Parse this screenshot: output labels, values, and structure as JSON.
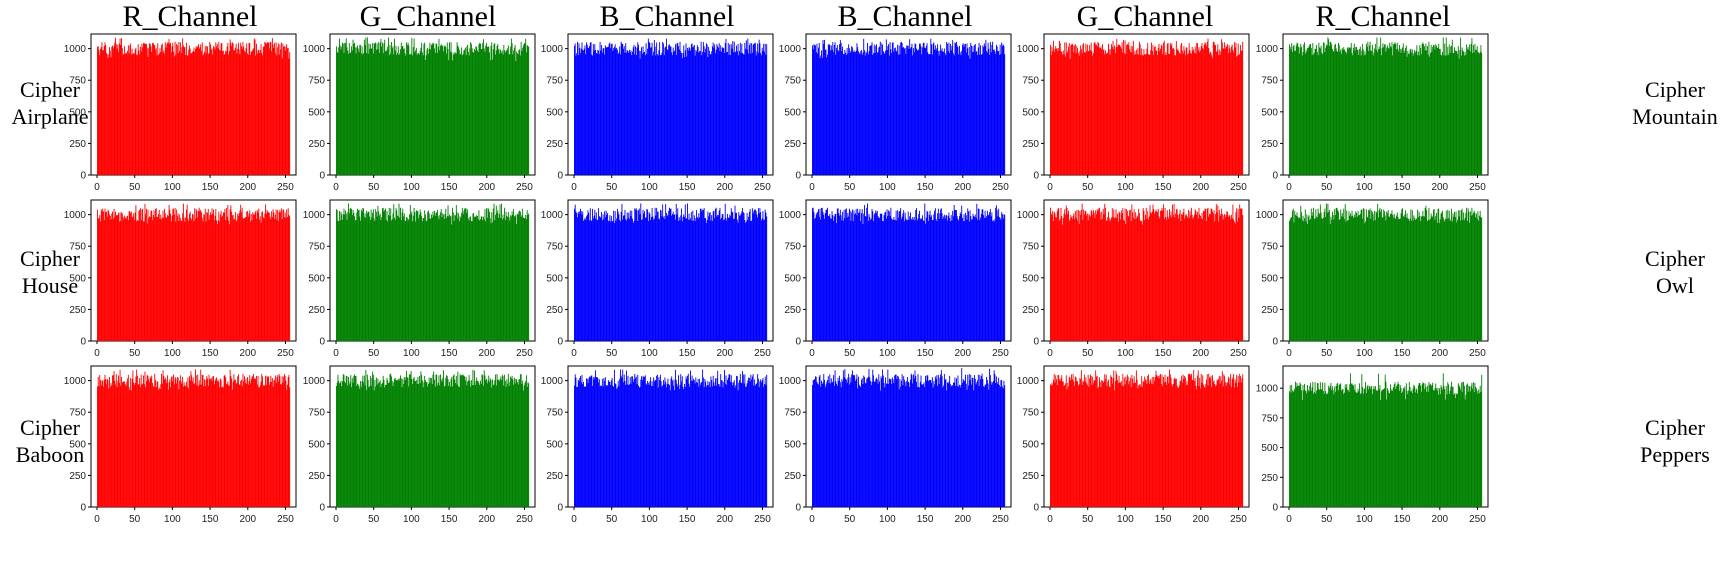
{
  "figure": {
    "column_titles": [
      "R_Channel",
      "G_Channel",
      "B_Channel",
      "B_Channel",
      "G_Channel",
      "R_Channel"
    ],
    "left_row_labels": [
      {
        "line1": "Cipher",
        "line2": "Airplane"
      },
      {
        "line1": "Cipher",
        "line2": "House"
      },
      {
        "line1": "Cipher",
        "line2": "Baboon"
      }
    ],
    "right_row_labels": [
      {
        "line1": "Cipher",
        "line2": "Mountain"
      },
      {
        "line1": "Cipher",
        "line2": "Owl"
      },
      {
        "line1": "Cipher",
        "line2": "Peppers"
      }
    ]
  },
  "colors": {
    "red": "#ff0000",
    "green": "#008000",
    "blue": "#0000ff"
  },
  "chart_data": [
    {
      "type": "bar",
      "title": "R_Channel",
      "image": "Cipher Airplane",
      "color": "#ff0000",
      "x_range": [
        0,
        255
      ],
      "value_range": [
        920,
        1090
      ],
      "typical_value": 1000,
      "ylim": [
        0,
        1100
      ],
      "xticks": [
        "0",
        "50",
        "100",
        "150",
        "200",
        "250"
      ],
      "yticks": [
        "0",
        "250",
        "500",
        "750",
        "1000"
      ],
      "grid": false
    },
    {
      "type": "bar",
      "title": "G_Channel",
      "image": "Cipher Airplane",
      "color": "#008000",
      "x_range": [
        0,
        255
      ],
      "value_range": [
        900,
        1090
      ],
      "typical_value": 1000,
      "ylim": [
        0,
        1100
      ],
      "xticks": [
        "0",
        "50",
        "100",
        "150",
        "200",
        "250"
      ],
      "yticks": [
        "0",
        "250",
        "500",
        "750",
        "1000"
      ],
      "grid": false
    },
    {
      "type": "bar",
      "title": "B_Channel",
      "image": "Cipher Airplane",
      "color": "#0000ff",
      "x_range": [
        0,
        255
      ],
      "value_range": [
        920,
        1080
      ],
      "typical_value": 1000,
      "ylim": [
        0,
        1100
      ],
      "xticks": [
        "0",
        "50",
        "100",
        "150",
        "200",
        "250"
      ],
      "yticks": [
        "0",
        "250",
        "500",
        "750",
        "1000"
      ],
      "grid": false
    },
    {
      "type": "bar",
      "title": "B_Channel",
      "image": "Cipher Mountain",
      "color": "#0000ff",
      "x_range": [
        0,
        255
      ],
      "value_range": [
        920,
        1080
      ],
      "typical_value": 1000,
      "ylim": [
        0,
        1100
      ],
      "xticks": [
        "0",
        "50",
        "100",
        "150",
        "200",
        "250"
      ],
      "yticks": [
        "0",
        "250",
        "500",
        "750",
        "1000"
      ],
      "grid": false
    },
    {
      "type": "bar",
      "title": "G_Channel",
      "image": "Cipher Mountain",
      "color": "#ff0000",
      "x_range": [
        0,
        255
      ],
      "value_range": [
        920,
        1080
      ],
      "typical_value": 1000,
      "ylim": [
        0,
        1100
      ],
      "xticks": [
        "0",
        "50",
        "100",
        "150",
        "200",
        "250"
      ],
      "yticks": [
        "0",
        "250",
        "500",
        "750",
        "1000"
      ],
      "grid": false
    },
    {
      "type": "bar",
      "title": "R_Channel",
      "image": "Cipher Mountain",
      "color": "#008000",
      "x_range": [
        0,
        255
      ],
      "value_range": [
        920,
        1090
      ],
      "typical_value": 1000,
      "ylim": [
        0,
        1100
      ],
      "xticks": [
        "0",
        "50",
        "100",
        "150",
        "200",
        "250"
      ],
      "yticks": [
        "0",
        "250",
        "500",
        "750",
        "1000"
      ],
      "grid": false
    },
    {
      "type": "bar",
      "title": "R_Channel",
      "image": "Cipher House",
      "color": "#ff0000",
      "x_range": [
        0,
        255
      ],
      "value_range": [
        920,
        1090
      ],
      "typical_value": 1000,
      "ylim": [
        0,
        1100
      ],
      "xticks": [
        "0",
        "50",
        "100",
        "150",
        "200",
        "250"
      ],
      "yticks": [
        "0",
        "250",
        "500",
        "750",
        "1000"
      ],
      "grid": false
    },
    {
      "type": "bar",
      "title": "G_Channel",
      "image": "Cipher House",
      "color": "#008000",
      "x_range": [
        0,
        255
      ],
      "value_range": [
        920,
        1090
      ],
      "typical_value": 1000,
      "ylim": [
        0,
        1100
      ],
      "xticks": [
        "0",
        "50",
        "100",
        "150",
        "200",
        "250"
      ],
      "yticks": [
        "0",
        "250",
        "500",
        "750",
        "1000"
      ],
      "grid": false
    },
    {
      "type": "bar",
      "title": "B_Channel",
      "image": "Cipher House",
      "color": "#0000ff",
      "x_range": [
        0,
        255
      ],
      "value_range": [
        920,
        1090
      ],
      "typical_value": 1000,
      "ylim": [
        0,
        1100
      ],
      "xticks": [
        "0",
        "50",
        "100",
        "150",
        "200",
        "250"
      ],
      "yticks": [
        "0",
        "250",
        "500",
        "750",
        "1000"
      ],
      "grid": false
    },
    {
      "type": "bar",
      "title": "B_Channel",
      "image": "Cipher Owl",
      "color": "#0000ff",
      "x_range": [
        0,
        255
      ],
      "value_range": [
        920,
        1090
      ],
      "typical_value": 1000,
      "ylim": [
        0,
        1100
      ],
      "xticks": [
        "0",
        "50",
        "100",
        "150",
        "200",
        "250"
      ],
      "yticks": [
        "0",
        "250",
        "500",
        "750",
        "1000"
      ],
      "grid": false
    },
    {
      "type": "bar",
      "title": "G_Channel",
      "image": "Cipher Owl",
      "color": "#ff0000",
      "x_range": [
        0,
        255
      ],
      "value_range": [
        920,
        1090
      ],
      "typical_value": 1000,
      "ylim": [
        0,
        1100
      ],
      "xticks": [
        "0",
        "50",
        "100",
        "150",
        "200",
        "250"
      ],
      "yticks": [
        "0",
        "250",
        "500",
        "750",
        "1000"
      ],
      "grid": false
    },
    {
      "type": "bar",
      "title": "R_Channel",
      "image": "Cipher Owl",
      "color": "#008000",
      "x_range": [
        0,
        255
      ],
      "value_range": [
        920,
        1090
      ],
      "typical_value": 1000,
      "ylim": [
        0,
        1100
      ],
      "xticks": [
        "0",
        "50",
        "100",
        "150",
        "200",
        "250"
      ],
      "yticks": [
        "0",
        "250",
        "500",
        "750",
        "1000"
      ],
      "grid": false
    },
    {
      "type": "bar",
      "title": "R_Channel",
      "image": "Cipher Baboon",
      "color": "#ff0000",
      "x_range": [
        0,
        255
      ],
      "value_range": [
        920,
        1090
      ],
      "typical_value": 1000,
      "ylim": [
        0,
        1100
      ],
      "xticks": [
        "0",
        "50",
        "100",
        "150",
        "200",
        "250"
      ],
      "yticks": [
        "0",
        "250",
        "500",
        "750",
        "1000"
      ],
      "grid": false
    },
    {
      "type": "bar",
      "title": "G_Channel",
      "image": "Cipher Baboon",
      "color": "#008000",
      "x_range": [
        0,
        255
      ],
      "value_range": [
        920,
        1090
      ],
      "typical_value": 1000,
      "ylim": [
        0,
        1100
      ],
      "xticks": [
        "0",
        "50",
        "100",
        "150",
        "200",
        "250"
      ],
      "yticks": [
        "0",
        "250",
        "500",
        "750",
        "1000"
      ],
      "grid": false
    },
    {
      "type": "bar",
      "title": "B_Channel",
      "image": "Cipher Baboon",
      "color": "#0000ff",
      "x_range": [
        0,
        255
      ],
      "value_range": [
        920,
        1090
      ],
      "typical_value": 1000,
      "ylim": [
        0,
        1100
      ],
      "xticks": [
        "0",
        "50",
        "100",
        "150",
        "200",
        "250"
      ],
      "yticks": [
        "0",
        "250",
        "500",
        "750",
        "1000"
      ],
      "grid": false
    },
    {
      "type": "bar",
      "title": "B_Channel",
      "image": "Cipher Peppers",
      "color": "#0000ff",
      "x_range": [
        0,
        255
      ],
      "value_range": [
        920,
        1100
      ],
      "typical_value": 1000,
      "ylim": [
        0,
        1100
      ],
      "xticks": [
        "0",
        "50",
        "100",
        "150",
        "200",
        "250"
      ],
      "yticks": [
        "0",
        "250",
        "500",
        "750",
        "1000"
      ],
      "grid": false
    },
    {
      "type": "bar",
      "title": "G_Channel",
      "image": "Cipher Peppers",
      "color": "#ff0000",
      "x_range": [
        0,
        255
      ],
      "value_range": [
        920,
        1090
      ],
      "typical_value": 1000,
      "ylim": [
        0,
        1100
      ],
      "xticks": [
        "0",
        "50",
        "100",
        "150",
        "200",
        "250"
      ],
      "yticks": [
        "0",
        "250",
        "500",
        "750",
        "1000"
      ],
      "grid": false
    },
    {
      "type": "bar",
      "title": "R_Channel",
      "image": "Cipher Peppers",
      "color": "#008000",
      "x_range": [
        0,
        255
      ],
      "value_range": [
        900,
        1130
      ],
      "typical_value": 1000,
      "ylim": [
        0,
        1170
      ],
      "xticks": [
        "0",
        "50",
        "100",
        "150",
        "200",
        "250"
      ],
      "yticks": [
        "0",
        "250",
        "500",
        "750",
        "1000"
      ],
      "grid": false
    }
  ]
}
